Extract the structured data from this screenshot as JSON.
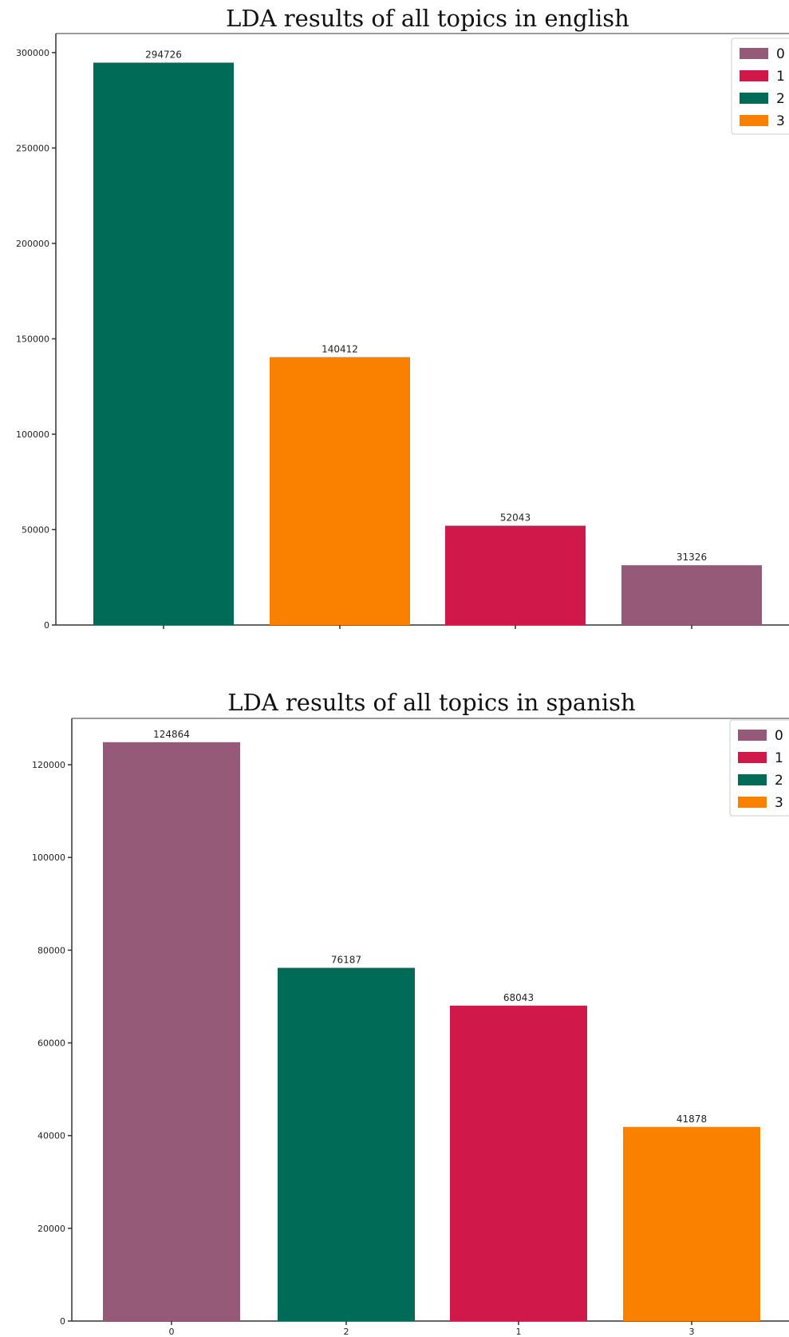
{
  "chart_data": [
    {
      "type": "bar",
      "title": "LDA results of all topics in english",
      "xlabel": "",
      "ylabel": "",
      "ylim": [
        0,
        310000
      ],
      "yticks": [
        0,
        50000,
        100000,
        150000,
        200000,
        250000,
        300000
      ],
      "grid": false,
      "legend_position": "top-right",
      "legend": [
        "0",
        "1",
        "2",
        "3"
      ],
      "category_colors": {
        "0": "#955a77",
        "1": "#d1184a",
        "2": "#006b57",
        "3": "#fa8100"
      },
      "bars": [
        {
          "topic": "2",
          "value": 294726,
          "label": "294726"
        },
        {
          "topic": "3",
          "value": 140412,
          "label": "140412"
        },
        {
          "topic": "1",
          "value": 52043,
          "label": "52043"
        },
        {
          "topic": "0",
          "value": 31326,
          "label": "31326"
        }
      ],
      "xticklabels": [
        "",
        "",
        "",
        ""
      ]
    },
    {
      "type": "bar",
      "title": "LDA results of all topics in spanish",
      "xlabel": "",
      "ylabel": "",
      "ylim": [
        0,
        130000
      ],
      "yticks": [
        0,
        20000,
        40000,
        60000,
        80000,
        100000,
        120000
      ],
      "grid": false,
      "legend_position": "top-right",
      "legend": [
        "0",
        "1",
        "2",
        "3"
      ],
      "category_colors": {
        "0": "#955a77",
        "1": "#d1184a",
        "2": "#006b57",
        "3": "#fa8100"
      },
      "bars": [
        {
          "topic": "0",
          "value": 124864,
          "label": "124864"
        },
        {
          "topic": "2",
          "value": 76187,
          "label": "76187"
        },
        {
          "topic": "1",
          "value": 68043,
          "label": "68043"
        },
        {
          "topic": "3",
          "value": 41878,
          "label": "41878"
        }
      ],
      "xticklabels": [
        "0",
        "2",
        "1",
        "3"
      ]
    }
  ]
}
